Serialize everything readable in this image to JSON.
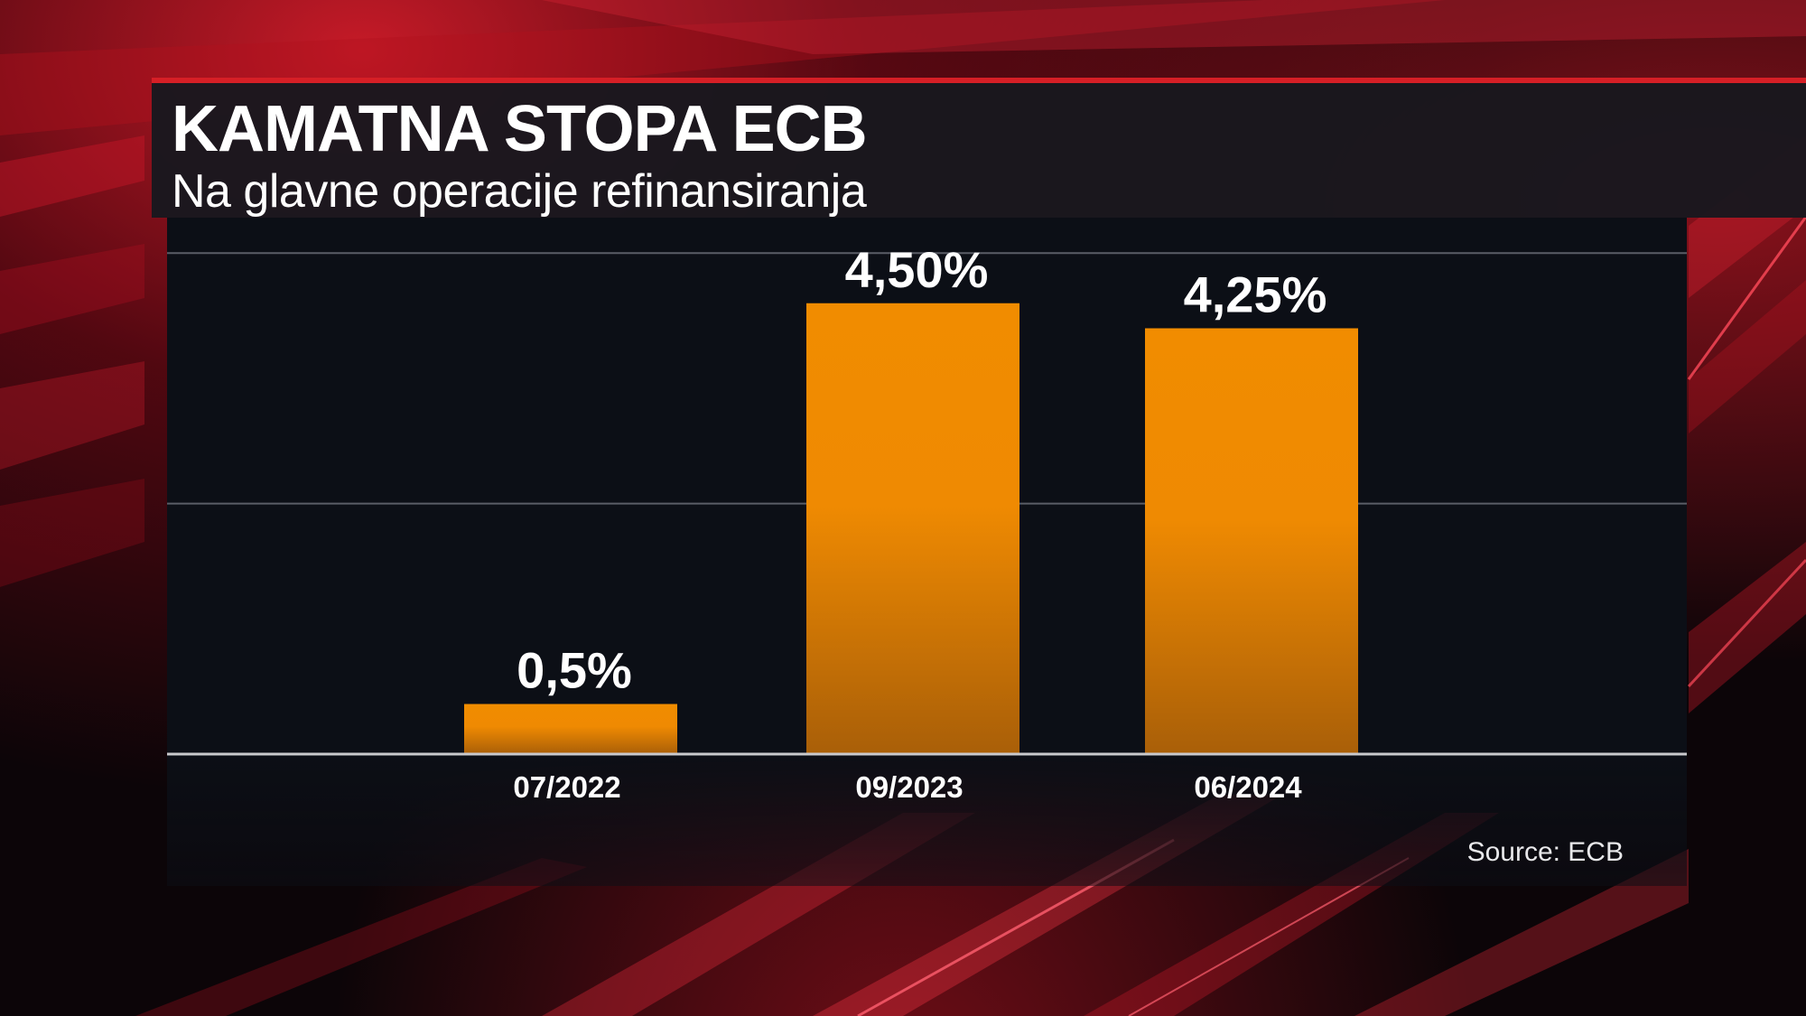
{
  "header": {
    "title": "KAMATNA STOPA ECB",
    "subtitle": "Na glavne operacije refinansiranja"
  },
  "source": "Source: ECB",
  "colors": {
    "accent": "#d61f26",
    "bar_top": "#f18c00",
    "bar_bottom": "#a95f08",
    "panel": "#0c0f16"
  },
  "chart_data": {
    "type": "bar",
    "categories": [
      "07/2022",
      "09/2023",
      "06/2024"
    ],
    "values": [
      0.5,
      4.5,
      4.25
    ],
    "value_labels": [
      "0,5%",
      "4,50%",
      "4,25%"
    ],
    "title": "KAMATNA STOPA ECB",
    "subtitle": "Na glavne operacije refinansiranja",
    "xlabel": "",
    "ylabel": "",
    "ylim": [
      0,
      5.3
    ],
    "gridlines": [
      2.5,
      5.0
    ],
    "grid": true,
    "legend": "none"
  }
}
